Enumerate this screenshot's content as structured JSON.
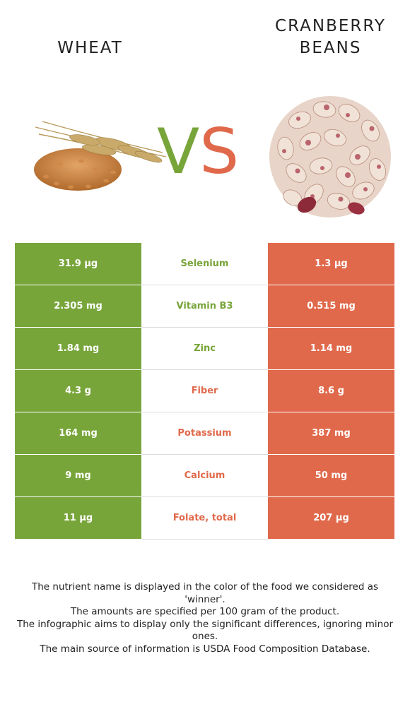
{
  "header": {
    "left_title": "WHEAT",
    "right_title": "CRANBERRY BEANS",
    "vs_v": "V",
    "vs_s": "S"
  },
  "colors": {
    "winner_left": "#78a53a",
    "winner_right": "#e0694b"
  },
  "rows": [
    {
      "nutrient": "Selenium",
      "left": "31.9 µg",
      "right": "1.3 µg",
      "winner": "left"
    },
    {
      "nutrient": "Vitamin B3",
      "left": "2.305 mg",
      "right": "0.515 mg",
      "winner": "left"
    },
    {
      "nutrient": "Zinc",
      "left": "1.84 mg",
      "right": "1.14 mg",
      "winner": "left"
    },
    {
      "nutrient": "Fiber",
      "left": "4.3 g",
      "right": "8.6 g",
      "winner": "right"
    },
    {
      "nutrient": "Potassium",
      "left": "164 mg",
      "right": "387 mg",
      "winner": "right"
    },
    {
      "nutrient": "Calcium",
      "left": "9 mg",
      "right": "50 mg",
      "winner": "right"
    },
    {
      "nutrient": "Folate, total",
      "left": "11 µg",
      "right": "207 µg",
      "winner": "right"
    }
  ],
  "notes": [
    "The nutrient name is displayed in the color of the food we considered as 'winner'.",
    "The amounts are specified per 100 gram of the product.",
    "The infographic aims to display only the significant differences, ignoring minor ones.",
    "The main source of information is USDA Food Composition Database."
  ]
}
